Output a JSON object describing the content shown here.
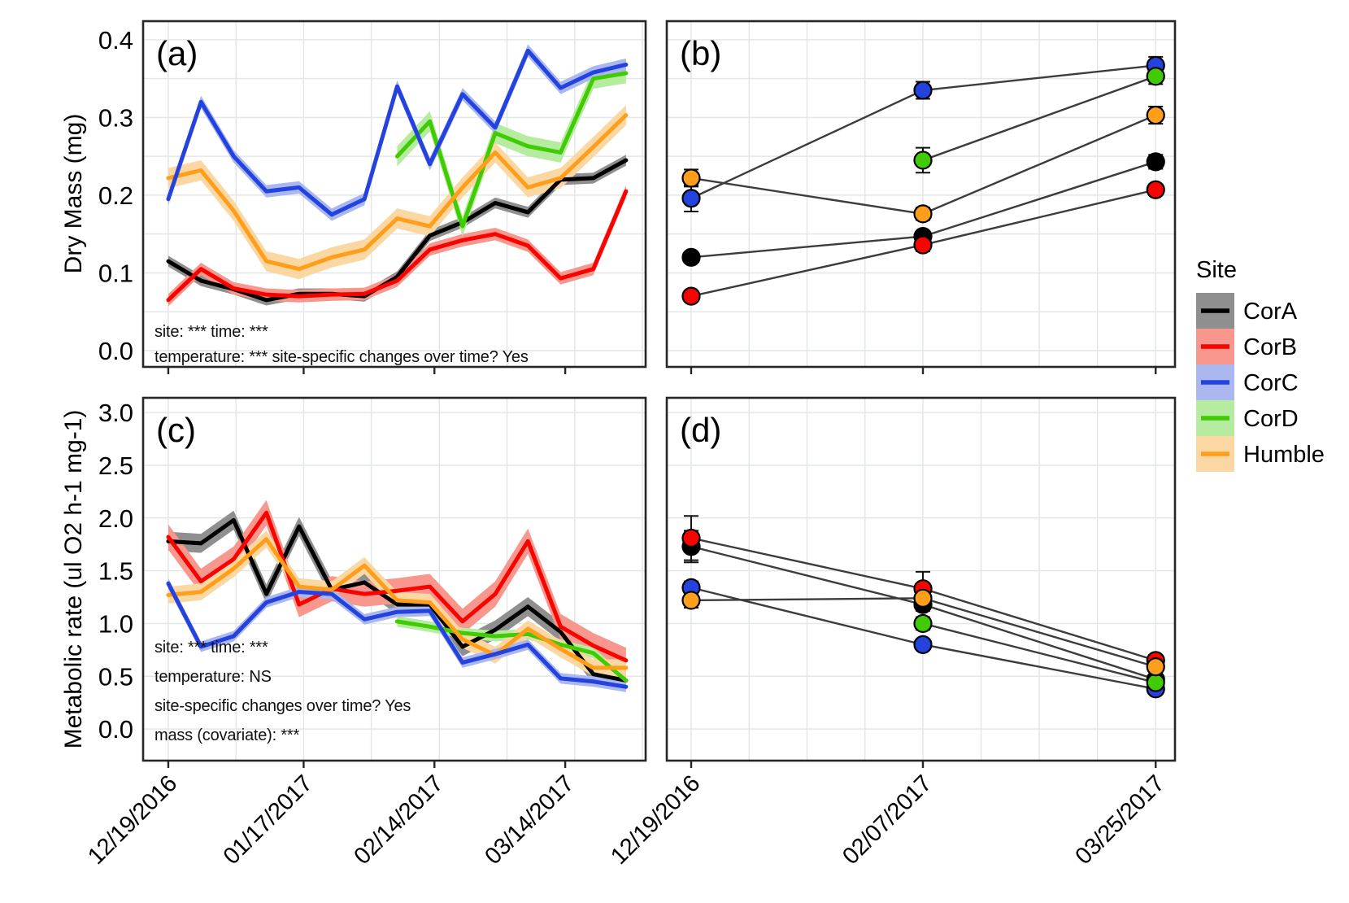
{
  "figure": {
    "background": "#ffffff"
  },
  "legend": {
    "title": "Site",
    "position": "right-center",
    "entries": [
      {
        "label": "CorA",
        "line_color": "#000000",
        "ribbon_color": "#8f8f8f"
      },
      {
        "label": "CorB",
        "line_color": "#f80400",
        "ribbon_color": "#f8978d"
      },
      {
        "label": "CorC",
        "line_color": "#2442de",
        "ribbon_color": "#abb8ef"
      },
      {
        "label": "CorD",
        "line_color": "#41cb04",
        "ribbon_color": "#b6ec9f"
      },
      {
        "label": "Humble",
        "line_color": "#ff9e1a",
        "ribbon_color": "#fbd8a3"
      }
    ]
  },
  "chart_data": [
    {
      "panel": "a",
      "type": "line_ribbon",
      "title_label": "(a)",
      "ylabel": "Dry Mass (mg)",
      "ylim": [
        -0.021,
        0.424
      ],
      "yticks": [
        0,
        0.1,
        0.2,
        0.3,
        0.4
      ],
      "ytick_labels": [
        "0.0",
        "0.1",
        "0.2",
        "0.3",
        "0.4"
      ],
      "grid_y": [
        0,
        0.05,
        0.1,
        0.15,
        0.2,
        0.25,
        0.3,
        0.35,
        0.4
      ],
      "xlim": [
        -0.77,
        14.6
      ],
      "x_unit": "weekly sampling index (0 = 12/19/2016)",
      "xticks": [
        {
          "label": "12/19/2016",
          "i": 0
        },
        {
          "label": "01/17/2017",
          "i": 4.14
        },
        {
          "label": "02/14/2017",
          "i": 8.14
        },
        {
          "label": "03/14/2017",
          "i": 12.14
        }
      ],
      "grid_x_i": [
        0,
        2.07,
        4.14,
        6.21,
        8.29,
        10.36,
        12.43,
        14.5
      ],
      "show_x_labels": false,
      "show_y_labels": true,
      "annotations": [
        "site: *** time: ***",
        "temperature: *** site-specific changes over time? Yes"
      ],
      "series": [
        {
          "name": "CorA",
          "band": 0.007,
          "values": [
            0.115,
            0.09,
            0.079,
            0.065,
            0.073,
            0.073,
            0.07,
            0.095,
            0.148,
            0.165,
            0.19,
            0.178,
            0.22,
            0.222,
            0.245
          ]
        },
        {
          "name": "CorB",
          "band": 0.008,
          "values": [
            0.065,
            0.105,
            0.08,
            0.072,
            0.07,
            0.072,
            0.073,
            0.09,
            0.13,
            0.142,
            0.15,
            0.135,
            0.093,
            0.105,
            0.205
          ]
        },
        {
          "name": "CorD",
          "band": 0.013,
          "values": [
            null,
            null,
            null,
            null,
            null,
            null,
            null,
            0.25,
            0.295,
            0.16,
            0.28,
            0.263,
            0.255,
            0.35,
            0.357
          ]
        },
        {
          "name": "Humble",
          "band": 0.013,
          "values": [
            0.222,
            0.232,
            0.18,
            0.115,
            0.105,
            0.12,
            0.13,
            0.17,
            0.16,
            0.21,
            0.255,
            0.21,
            0.222,
            0.262,
            0.303
          ]
        },
        {
          "name": "CorC",
          "band": 0.008,
          "values": [
            0.195,
            0.32,
            0.25,
            0.205,
            0.21,
            0.175,
            0.195,
            0.34,
            0.24,
            0.33,
            0.287,
            0.386,
            0.338,
            0.358,
            0.368
          ]
        }
      ]
    },
    {
      "panel": "b",
      "type": "points_errorbars",
      "title_label": "(b)",
      "ylabel": "",
      "ylim": [
        -0.021,
        0.424
      ],
      "yticks": [],
      "ytick_labels": [],
      "grid_y": [
        0,
        0.05,
        0.1,
        0.15,
        0.2,
        0.25,
        0.3,
        0.35,
        0.4
      ],
      "xticks": [
        {
          "label": "12/19/2016",
          "f": 0.048
        },
        {
          "label": "02/07/2017",
          "f": 0.504
        },
        {
          "label": "03/25/2017",
          "f": 0.962
        }
      ],
      "grid_x_f": [
        0.048,
        0.162,
        0.276,
        0.39,
        0.504,
        0.6185,
        0.733,
        0.8475,
        0.962
      ],
      "show_x_labels": false,
      "show_y_labels": false,
      "annotations": [],
      "series": [
        {
          "name": "CorA",
          "values": [
            0.12,
            0.147,
            0.243
          ],
          "errors": [
            0.006,
            0.006,
            0.009
          ]
        },
        {
          "name": "CorB",
          "values": [
            0.07,
            0.136,
            0.207
          ],
          "errors": [
            0.005,
            0.008,
            0.007
          ]
        },
        {
          "name": "CorC",
          "values": [
            0.196,
            0.335,
            0.367
          ],
          "errors": [
            0.017,
            0.011,
            0.011
          ]
        },
        {
          "name": "CorD",
          "values": [
            null,
            0.245,
            0.353
          ],
          "errors": [
            null,
            0.016,
            0.01
          ]
        },
        {
          "name": "Humble",
          "values": [
            0.222,
            0.176,
            0.303
          ],
          "errors": [
            0.011,
            0.008,
            0.011
          ]
        }
      ]
    },
    {
      "panel": "c",
      "type": "line_ribbon",
      "title_label": "(c)",
      "ylabel": "Metabolic rate (ul O2 h-1 mg-1)",
      "ylim": [
        -0.3,
        3.14
      ],
      "yticks": [
        0,
        0.5,
        1,
        1.5,
        2,
        2.5,
        3
      ],
      "ytick_labels": [
        "0.0",
        "0.5",
        "1.0",
        "1.5",
        "2.0",
        "2.5",
        "3.0"
      ],
      "grid_y": [
        0,
        0.5,
        1,
        1.5,
        2,
        2.5,
        3
      ],
      "xlim": [
        -0.77,
        14.6
      ],
      "x_unit": "weekly sampling index (0 = 12/19/2016)",
      "xticks": [
        {
          "label": "12/19/2016",
          "i": 0
        },
        {
          "label": "01/17/2017",
          "i": 4.14
        },
        {
          "label": "02/14/2017",
          "i": 8.14
        },
        {
          "label": "03/14/2017",
          "i": 12.14
        }
      ],
      "grid_x_i": [
        0,
        2.07,
        4.14,
        6.21,
        8.29,
        10.36,
        12.43,
        14.5
      ],
      "show_x_labels": true,
      "show_y_labels": true,
      "annotations": [
        "site: *** time: ***",
        "temperature: NS",
        "site-specific changes over time? Yes",
        "mass (covariate): ***"
      ],
      "series": [
        {
          "name": "CorA",
          "band": 0.09,
          "values": [
            1.78,
            1.76,
            1.98,
            1.28,
            1.92,
            1.32,
            1.39,
            1.18,
            1.18,
            0.78,
            0.94,
            1.16,
            0.92,
            0.52,
            0.46
          ]
        },
        {
          "name": "CorB",
          "band": 0.12,
          "values": [
            1.82,
            1.4,
            1.61,
            2.05,
            1.18,
            1.33,
            1.28,
            1.31,
            1.35,
            1.02,
            1.28,
            1.78,
            0.97,
            0.79,
            0.65
          ]
        },
        {
          "name": "CorD",
          "band": 0.05,
          "values": [
            null,
            null,
            null,
            null,
            null,
            null,
            null,
            1.02,
            0.97,
            0.91,
            0.88,
            0.9,
            0.8,
            0.72,
            0.46
          ]
        },
        {
          "name": "Humble",
          "band": 0.08,
          "values": [
            1.27,
            1.3,
            1.52,
            1.8,
            1.35,
            1.32,
            1.55,
            1.22,
            1.2,
            0.85,
            0.7,
            0.95,
            0.76,
            0.58,
            0.58
          ]
        },
        {
          "name": "CorC",
          "band": 0.05,
          "values": [
            1.38,
            0.78,
            0.88,
            1.2,
            1.3,
            1.28,
            1.04,
            1.11,
            1.12,
            0.63,
            0.71,
            0.8,
            0.48,
            0.45,
            0.4
          ]
        }
      ]
    },
    {
      "panel": "d",
      "type": "points_errorbars",
      "title_label": "(d)",
      "ylabel": "",
      "ylim": [
        -0.3,
        3.14
      ],
      "yticks": [],
      "ytick_labels": [],
      "grid_y": [
        0,
        0.5,
        1,
        1.5,
        2,
        2.5,
        3
      ],
      "xticks": [
        {
          "label": "12/19/2016",
          "f": 0.048
        },
        {
          "label": "02/07/2017",
          "f": 0.504
        },
        {
          "label": "03/25/2017",
          "f": 0.962
        }
      ],
      "grid_x_f": [
        0.048,
        0.162,
        0.276,
        0.39,
        0.504,
        0.6185,
        0.733,
        0.8475,
        0.962
      ],
      "show_x_labels": true,
      "show_y_labels": false,
      "annotations": [],
      "series": [
        {
          "name": "CorA",
          "values": [
            1.73,
            1.18,
            0.47
          ],
          "errors": [
            0.15,
            0.06,
            0.04
          ]
        },
        {
          "name": "CorB",
          "values": [
            1.81,
            1.33,
            0.65
          ],
          "errors": [
            0.21,
            0.16,
            0.05
          ]
        },
        {
          "name": "CorC",
          "values": [
            1.34,
            0.8,
            0.38
          ],
          "errors": [
            0.06,
            0.05,
            0.04
          ]
        },
        {
          "name": "CorD",
          "values": [
            null,
            1.0,
            0.44
          ],
          "errors": [
            null,
            0.06,
            0.04
          ]
        },
        {
          "name": "Humble",
          "values": [
            1.22,
            1.24,
            0.59
          ],
          "errors": [
            0.07,
            0.05,
            0.04
          ]
        }
      ]
    }
  ]
}
